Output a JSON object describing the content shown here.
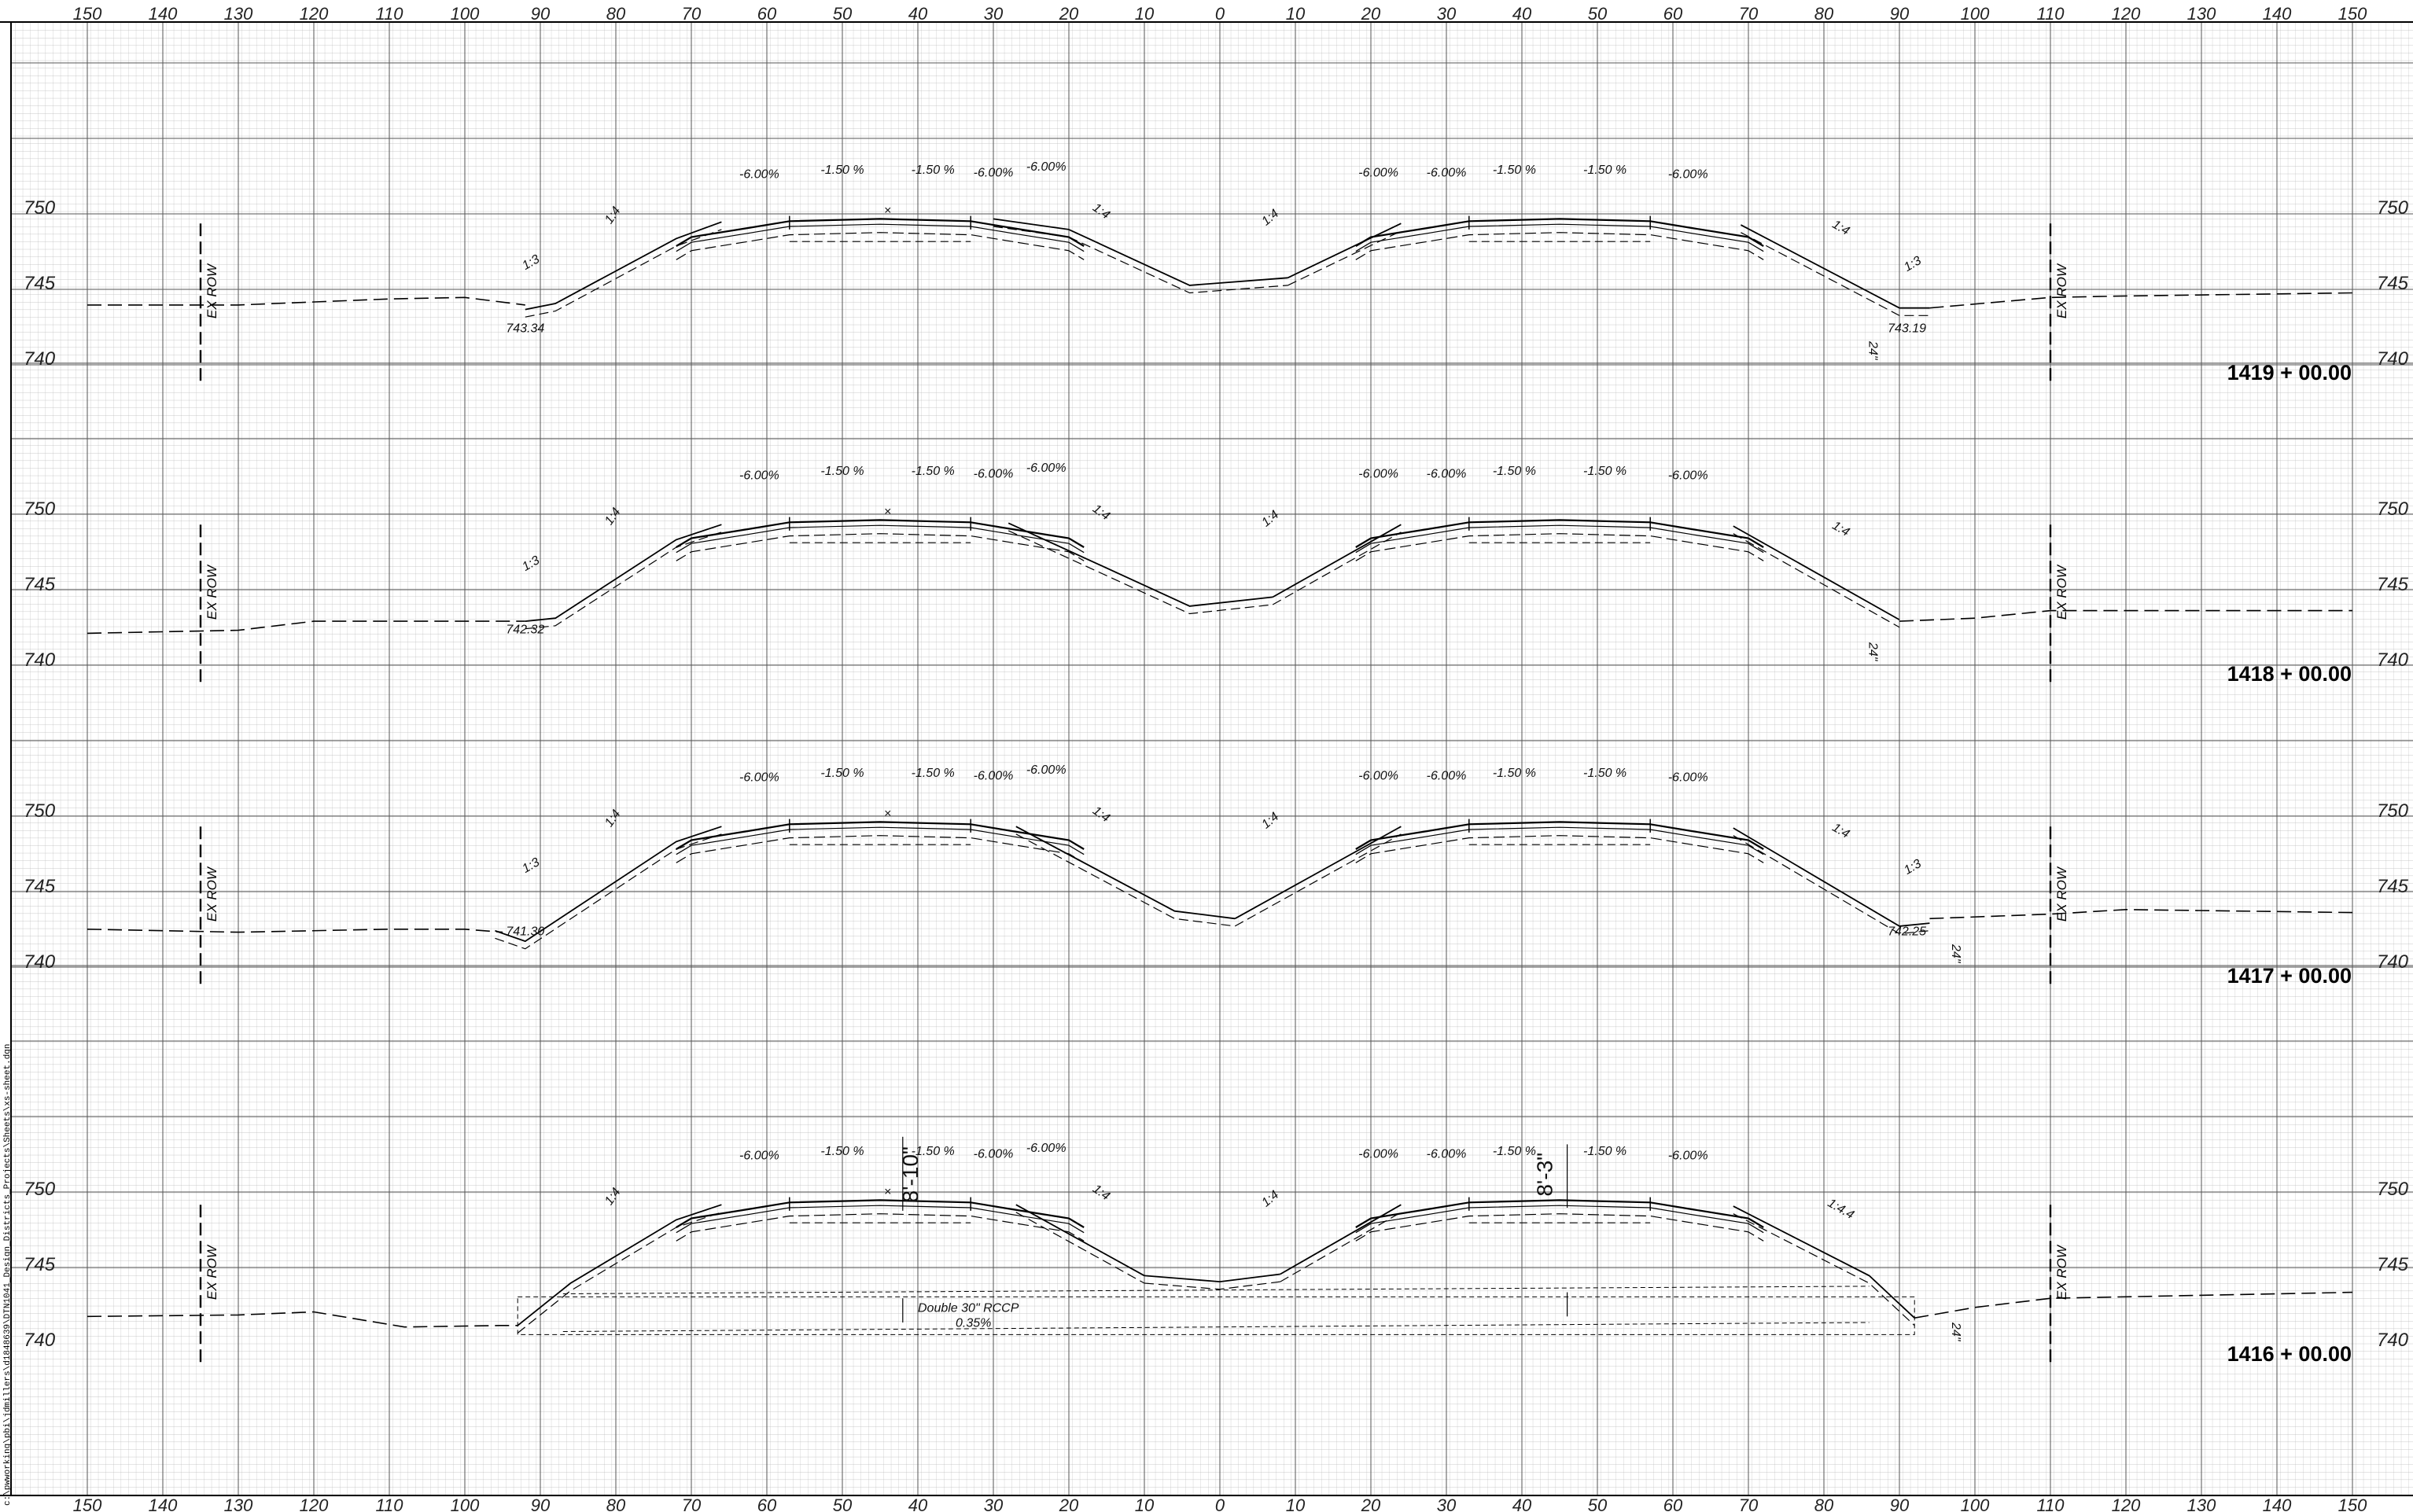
{
  "x_axis_labels": [
    "150",
    "140",
    "130",
    "120",
    "110",
    "100",
    "90",
    "80",
    "70",
    "60",
    "50",
    "40",
    "30",
    "20",
    "10",
    "0",
    "10",
    "20",
    "30",
    "40",
    "50",
    "60",
    "70",
    "80",
    "90",
    "100",
    "110",
    "120",
    "130",
    "140",
    "150"
  ],
  "elevation_labels": [
    "750",
    "745",
    "740"
  ],
  "side_path_text": "c:\\pwworking\\pbi\\jdmillers\\d1848639\\DTN1041_Design_Districts_Projects\\Sheets\\xs-sheet.dgn",
  "row_label": "EX ROW",
  "sections": [
    {
      "station": "1419 + 00.00",
      "labels": {
        "l_g1": "-6.00%",
        "l_g2": "-1.50 %",
        "l_g3": "-1.50 %",
        "l_g4": "-6.00%",
        "l_g5": "-6.00%",
        "r_g1": "-6.00%",
        "r_g2": "-6.00%",
        "r_g3": "-1.50 %",
        "r_g4": "-1.50 %",
        "r_g5": "-6.00%",
        "s1": "1:3",
        "s2": "1:4",
        "s3": "1:4",
        "s4": "1:4",
        "s5": "1:4",
        "s6": "1:3",
        "e1": "743.34",
        "e2": "743.19",
        "pipe": "24\""
      }
    },
    {
      "station": "1418 + 00.00",
      "labels": {
        "l_g1": "-6.00%",
        "l_g2": "-1.50 %",
        "l_g3": "-1.50 %",
        "l_g4": "-6.00%",
        "l_g5": "-6.00%",
        "r_g1": "-6.00%",
        "r_g2": "-6.00%",
        "r_g3": "-1.50 %",
        "r_g4": "-1.50 %",
        "r_g5": "-6.00%",
        "s1": "1:3",
        "s2": "1:4",
        "s3": "1:4",
        "s4": "1:4",
        "s5": "1:4",
        "e1": "742.32",
        "pipe": "24\""
      }
    },
    {
      "station": "1417 + 00.00",
      "labels": {
        "l_g1": "-6.00%",
        "l_g2": "-1.50 %",
        "l_g3": "-1.50 %",
        "l_g4": "-6.00%",
        "l_g5": "-6.00%",
        "r_g1": "-6.00%",
        "r_g2": "-6.00%",
        "r_g3": "-1.50 %",
        "r_g4": "-1.50 %",
        "r_g5": "-6.00%",
        "s1": "1:3",
        "s2": "1:4",
        "s3": "1:4",
        "s4": "1:4",
        "s5": "1:4",
        "s6": "1:3",
        "e1": "741.30",
        "e2": "742.25",
        "pipe": "24\""
      }
    },
    {
      "station": "1416 + 00.00",
      "labels": {
        "l_g1": "-6.00%",
        "l_g2": "-1.50 %",
        "l_g3": "-1.50 %",
        "l_g4": "-6.00%",
        "l_g5": "-6.00%",
        "r_g1": "-6.00%",
        "r_g2": "-6.00%",
        "r_g3": "-1.50 %",
        "r_g4": "-1.50 %",
        "r_g5": "-6.00%",
        "s2": "1:4",
        "s3": "1:4",
        "s4": "1:4",
        "s5": "1:4.4",
        "pipe": "24\"",
        "dim_left": "8'-10\"",
        "dim_right": "8'-3\"",
        "culvert_1": "Double 30\" RCCP",
        "culvert_2": "0.35%"
      }
    }
  ]
}
